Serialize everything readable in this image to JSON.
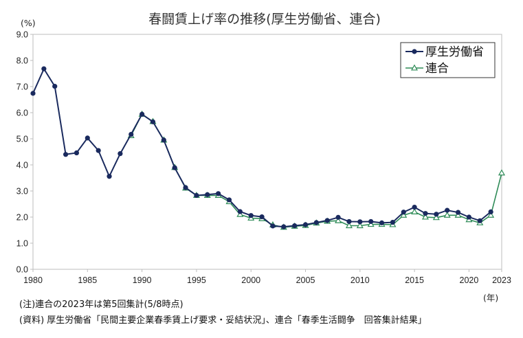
{
  "chart_data": {
    "type": "line",
    "title": "春闘賃上げ率の推移(厚生労働省、連合)",
    "ylabel": "(%)",
    "xlabel": "(年)",
    "ylim": [
      0,
      9
    ],
    "xlim": [
      1980,
      2023
    ],
    "y_ticks": [
      "0.0",
      "1.0",
      "2.0",
      "3.0",
      "4.0",
      "5.0",
      "6.0",
      "7.0",
      "8.0",
      "9.0"
    ],
    "x_ticks": [
      "1980",
      "1985",
      "1990",
      "1995",
      "2000",
      "2005",
      "2010",
      "2015",
      "2020",
      "2023"
    ],
    "grid": false,
    "legend_position": "top-right",
    "series": [
      {
        "name": "厚生労働省",
        "color": "#1a2a5e",
        "marker": "circle",
        "x": [
          1980,
          1981,
          1982,
          1983,
          1984,
          1985,
          1986,
          1987,
          1988,
          1989,
          1990,
          1991,
          1992,
          1993,
          1994,
          1995,
          1996,
          1997,
          1998,
          1999,
          2000,
          2001,
          2002,
          2003,
          2004,
          2005,
          2006,
          2007,
          2008,
          2009,
          2010,
          2011,
          2012,
          2013,
          2014,
          2015,
          2016,
          2017,
          2018,
          2019,
          2020,
          2021,
          2022
        ],
        "values": [
          6.74,
          7.68,
          7.01,
          4.4,
          4.46,
          5.03,
          4.55,
          3.56,
          4.43,
          5.17,
          5.94,
          5.65,
          4.95,
          3.89,
          3.13,
          2.83,
          2.86,
          2.9,
          2.66,
          2.21,
          2.06,
          2.01,
          1.66,
          1.63,
          1.67,
          1.71,
          1.79,
          1.87,
          1.99,
          1.83,
          1.82,
          1.83,
          1.78,
          1.8,
          2.19,
          2.38,
          2.14,
          2.11,
          2.26,
          2.18,
          2.0,
          1.86,
          2.2
        ]
      },
      {
        "name": "連合",
        "color": "#2e8b57",
        "marker": "triangle",
        "x": [
          1989,
          1990,
          1991,
          1992,
          1993,
          1994,
          1995,
          1996,
          1997,
          1998,
          1999,
          2000,
          2001,
          2002,
          2003,
          2004,
          2005,
          2006,
          2007,
          2008,
          2009,
          2010,
          2011,
          2012,
          2013,
          2014,
          2015,
          2016,
          2017,
          2018,
          2019,
          2020,
          2021,
          2022,
          2023
        ],
        "values": [
          5.12,
          5.94,
          5.66,
          4.95,
          3.9,
          3.11,
          2.83,
          2.83,
          2.83,
          2.59,
          2.1,
          1.96,
          1.94,
          1.7,
          1.61,
          1.65,
          1.68,
          1.77,
          1.84,
          1.86,
          1.67,
          1.67,
          1.72,
          1.72,
          1.71,
          2.07,
          2.2,
          2.0,
          1.98,
          2.07,
          2.07,
          1.9,
          1.78,
          2.07,
          3.69
        ]
      }
    ]
  },
  "notes": {
    "note1": "(注)連合の2023年は第5回集計(5/8時点)",
    "note2": "(資料) 厚生労働省「民間主要企業春季賃上げ要求・妥結状況」、連合「春季生活闘争　回答集計結果」"
  }
}
